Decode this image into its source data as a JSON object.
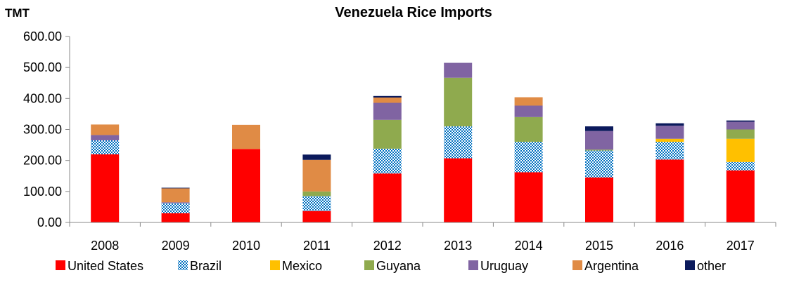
{
  "chart_data": {
    "type": "bar",
    "stacked": true,
    "title": "Venezuela Rice Imports",
    "unit_label": "TMT",
    "xlabel": "",
    "ylabel": "",
    "ylim": [
      0,
      600
    ],
    "yticks": [
      "0.00",
      "100.00",
      "200.00",
      "300.00",
      "400.00",
      "500.00",
      "600.00"
    ],
    "grid": false,
    "legend_position": "bottom",
    "categories": [
      "2008",
      "2009",
      "2010",
      "2011",
      "2012",
      "2013",
      "2014",
      "2015",
      "2016",
      "2017"
    ],
    "series": [
      {
        "name": "United States",
        "color": "#ff0000",
        "pattern": "solid",
        "values": [
          220,
          30,
          237,
          37,
          158,
          207,
          162,
          145,
          203,
          168
        ]
      },
      {
        "name": "Brazil",
        "color": "#0070c0",
        "pattern": "dots",
        "values": [
          45,
          32,
          0,
          48,
          80,
          103,
          98,
          87,
          57,
          27
        ]
      },
      {
        "name": "Mexico",
        "color": "#ffc000",
        "pattern": "solid",
        "values": [
          0,
          0,
          0,
          0,
          0,
          0,
          0,
          0,
          10,
          75
        ]
      },
      {
        "name": "Guyana",
        "color": "#8faa4e",
        "pattern": "solid",
        "values": [
          0,
          0,
          0,
          15,
          93,
          157,
          80,
          3,
          0,
          30
        ]
      },
      {
        "name": "Uruguay",
        "color": "#8064a2",
        "pattern": "solid",
        "values": [
          17,
          3,
          0,
          0,
          55,
          48,
          37,
          60,
          42,
          25
        ]
      },
      {
        "name": "Argentina",
        "color": "#e08b45",
        "pattern": "solid",
        "values": [
          34,
          45,
          78,
          102,
          17,
          0,
          27,
          0,
          0,
          0
        ]
      },
      {
        "name": "other",
        "color": "#0b1a5c",
        "pattern": "solid",
        "values": [
          0,
          2,
          0,
          17,
          5,
          0,
          0,
          15,
          8,
          4
        ]
      }
    ]
  }
}
